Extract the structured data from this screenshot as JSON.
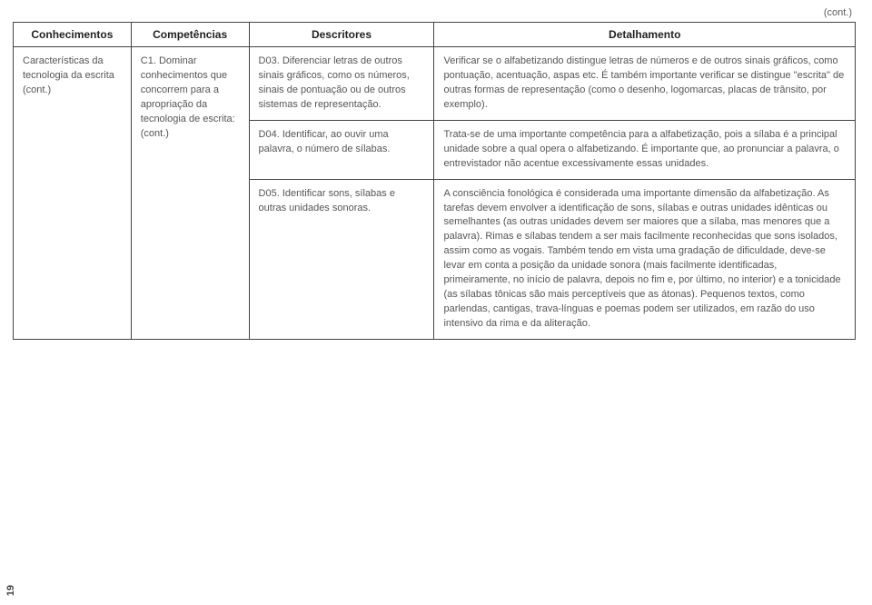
{
  "cont_label": "(cont.)",
  "page_number": "19",
  "headers": {
    "c1": "Conhecimentos",
    "c2": "Competências",
    "c3": "Descritores",
    "c4": "Detalhamento"
  },
  "row1": {
    "c1": "Características da tecnologia da escrita (cont.)",
    "c2": "C1. Dominar conhecimentos que concorrem para a apropriação da tecnologia de escrita: (cont.)",
    "c3": "D03. Diferenciar letras de outros sinais gráficos, como os números, sinais de pontuação ou de outros sistemas de representação.",
    "c4": "Verificar se o alfabetizando distingue letras de números e de outros sinais gráficos, como pontuação, acentuação, aspas etc. É também importante verificar se distingue \"escrita\" de outras formas de representação (como o desenho, logomarcas, placas de trânsito, por exemplo)."
  },
  "row2": {
    "c3": "D04. Identificar, ao ouvir uma palavra, o número de sílabas.",
    "c4": "Trata-se de uma importante competência para a alfabetização, pois a sílaba é a principal unidade sobre a qual opera o alfabetizando. É importante que, ao pronunciar a palavra, o entrevistador não acentue excessivamente essas unidades."
  },
  "row3": {
    "c3": "D05. Identificar sons, sílabas e outras unidades sonoras.",
    "c4": "A consciência fonológica é considerada uma importante dimensão da alfabetização. As tarefas devem envolver a identificação de sons, sílabas e outras unidades idênticas ou semelhantes (as outras unidades devem ser maiores que a sílaba, mas menores que a palavra). Rimas e sílabas tendem a ser mais facilmente reconhecidas que sons isolados, assim como as vogais. Também tendo em vista uma gradação de dificuldade, deve-se levar em conta a posição da unidade sonora (mais facilmente identificadas, primeiramente, no início de palavra, depois no fim e, por último, no interior) e a tonicidade (as sílabas tônicas são mais perceptíveis que as átonas). Pequenos textos, como parlendas, cantigas, trava-línguas e poemas podem ser utilizados, em razão do uso intensivo da rima e da aliteração."
  }
}
